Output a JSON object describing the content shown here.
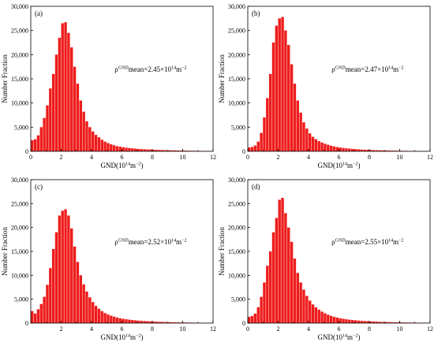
{
  "figure": {
    "panels": [
      {
        "id": "a",
        "tag": "(a)",
        "annotation": {
          "rho": "ρ",
          "sup1": "GND",
          "mid": "mean=2.45×10",
          "sup2": "14",
          "unit": "m",
          "sup3": "−2"
        }
      },
      {
        "id": "b",
        "tag": "(b)",
        "annotation": {
          "rho": "ρ",
          "sup1": "GND",
          "mid": "mean=2.47×10",
          "sup2": "14",
          "unit": "m",
          "sup3": "−2"
        }
      },
      {
        "id": "c",
        "tag": "(c)",
        "annotation": {
          "rho": "ρ",
          "sup1": "GND",
          "mid": "mean=2.52×10",
          "sup2": "14",
          "unit": "m",
          "sup3": "−2"
        }
      },
      {
        "id": "d",
        "tag": "(d)",
        "annotation": {
          "rho": "ρ",
          "sup1": "GND",
          "mid": "mean=2.55×10",
          "sup2": "14",
          "unit": "m",
          "sup3": "−2"
        }
      }
    ],
    "ylabel": "Number Fraction",
    "xlabel": {
      "main": "GND(10",
      "sup1": "14",
      "unit": "m",
      "sup2": "−2",
      "close": ")"
    },
    "colors": {
      "bar": "#ee1c1c",
      "bar_edge": "#ffffff",
      "axis": "#000000"
    }
  },
  "chart_data": [
    {
      "type": "bar",
      "panel": "(a)",
      "xlim": [
        0,
        12
      ],
      "ylim": [
        0,
        30000
      ],
      "xticks": [
        "0",
        "2",
        "4",
        "6",
        "8",
        "10",
        "12"
      ],
      "yticks": [
        "0",
        "5,000",
        "10,000",
        "15,000",
        "20,000",
        "25,000",
        "30,000"
      ],
      "bin_width": 0.2,
      "values": [
        2300,
        2500,
        3300,
        5000,
        6900,
        9500,
        13000,
        16000,
        20000,
        23500,
        26500,
        26700,
        24500,
        21500,
        17500,
        14000,
        10500,
        8200,
        6200,
        5000,
        4100,
        3400,
        2900,
        2400,
        2000,
        1700,
        1450,
        1250,
        1050,
        950,
        850,
        750,
        680,
        620,
        560,
        500,
        460,
        420,
        390,
        360,
        330,
        300,
        280,
        260,
        240,
        220,
        200,
        185,
        170,
        155,
        140,
        130,
        120,
        110,
        100,
        90,
        80,
        70,
        60,
        50
      ]
    },
    {
      "type": "bar",
      "panel": "(b)",
      "xlim": [
        0,
        12
      ],
      "ylim": [
        0,
        30000
      ],
      "xticks": [
        "0",
        "2",
        "4",
        "6",
        "8",
        "10",
        "12"
      ],
      "yticks": [
        "0",
        "5,000",
        "10,000",
        "15,000",
        "20,000",
        "25,000",
        "30,000"
      ],
      "bin_width": 0.2,
      "values": [
        800,
        900,
        1200,
        2000,
        3800,
        7000,
        11000,
        16000,
        22500,
        26000,
        27500,
        27800,
        25000,
        22000,
        18000,
        14000,
        10500,
        8000,
        6000,
        4700,
        3700,
        3000,
        2500,
        2100,
        1800,
        1550,
        1350,
        1150,
        1000,
        880,
        780,
        690,
        620,
        560,
        500,
        450,
        410,
        370,
        340,
        310,
        280,
        255,
        230,
        210,
        190,
        175,
        160,
        145,
        130,
        120,
        110,
        100,
        90,
        80,
        70,
        60,
        55,
        50,
        45,
        40
      ]
    },
    {
      "type": "bar",
      "panel": "(c)",
      "xlim": [
        0,
        12
      ],
      "ylim": [
        0,
        30000
      ],
      "xticks": [
        "2",
        "4",
        "6",
        "8",
        "10",
        "12"
      ],
      "yticks": [
        "0",
        "5,000",
        "10,000",
        "15,000",
        "20,000",
        "25,000",
        "30,000"
      ],
      "bin_width": 0.2,
      "values": [
        2500,
        2000,
        2900,
        4000,
        5500,
        8000,
        11500,
        15500,
        19000,
        22500,
        23500,
        23800,
        22500,
        19800,
        16000,
        12800,
        10000,
        8100,
        6600,
        5400,
        4400,
        3600,
        3000,
        2500,
        2100,
        1800,
        1550,
        1350,
        1150,
        1000,
        900,
        800,
        720,
        650,
        580,
        520,
        470,
        430,
        390,
        350,
        320,
        290,
        260,
        240,
        220,
        200,
        180,
        165,
        150,
        135,
        120,
        110,
        100,
        90,
        80,
        70,
        60,
        50,
        45,
        40
      ]
    },
    {
      "type": "bar",
      "panel": "(d)",
      "xlim": [
        0,
        12
      ],
      "ylim": [
        0,
        30000
      ],
      "xticks": [
        "0",
        "2",
        "4",
        "6",
        "8",
        "10",
        "12"
      ],
      "yticks": [
        "0",
        "5,000",
        "10,000",
        "15,000",
        "20,000",
        "25,000",
        "30,000"
      ],
      "bin_width": 0.2,
      "values": [
        1300,
        1500,
        2000,
        3300,
        5500,
        8500,
        12000,
        15000,
        19000,
        22000,
        25800,
        26200,
        23000,
        20000,
        17000,
        13500,
        10500,
        8500,
        7000,
        5700,
        4700,
        3900,
        3300,
        2800,
        2400,
        2050,
        1750,
        1500,
        1300,
        1150,
        1000,
        900,
        800,
        720,
        650,
        590,
        530,
        480,
        440,
        400,
        360,
        330,
        300,
        270,
        250,
        230,
        210,
        190,
        175,
        160,
        145,
        130,
        120,
        110,
        100,
        90,
        80,
        70,
        60,
        50
      ]
    }
  ]
}
